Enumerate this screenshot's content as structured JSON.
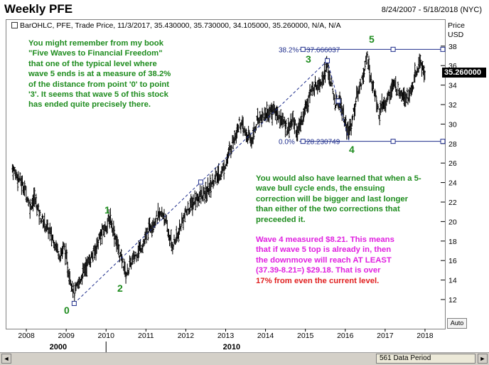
{
  "header": {
    "title": "Weekly PFE",
    "date_range": "8/24/2007 - 5/18/2018 (NYC)"
  },
  "info_line": "BarOHLC, PFE, Trade Price, 11/3/2017, 35.430000, 35.730000, 34.105000, 35.260000, N/A, N/A",
  "price_axis_header": {
    "line1": "Price",
    "line2": "USD"
  },
  "last_price": "35.260000",
  "auto_button": "Auto",
  "annotations": {
    "text1": [
      "You might remember from my book",
      "\"Five Waves to Financial Freedom\"",
      "that one of the typical level where",
      "wave 5 ends is at a measure of 38.2%",
      "of the distance from point '0' to point",
      "'3'. It seems that wave 5 of this stock",
      "has ended quite precisely there."
    ],
    "text2": [
      "You would also have learned that when a 5-",
      "wave bull cycle ends, the ensuing",
      "correction will be bigger and last longer",
      "than either of the two corrections that",
      "preceeded it."
    ],
    "text3": [
      "Wave 4 measured $8.21. This means",
      "that if wave 5 top is already in, then",
      "the downmove will reach AT LEAST",
      "(37.39-8.21=) $29.18. That is over"
    ],
    "text3_red": "17% from even the current level."
  },
  "wave_labels": [
    "0",
    "1",
    "2",
    "3",
    "4",
    "5"
  ],
  "fib_labels": {
    "pct_high": "38.2%",
    "val_high": "37.666037",
    "pct_low": "0.0%",
    "val_low": "28.230749"
  },
  "scrollbar": {
    "left": "◄",
    "right": "►",
    "thumb": "561 Data Period"
  },
  "colors": {
    "bars": "#000000",
    "annotation_green": "#1e8c1e",
    "annotation_magenta": "#e020e0",
    "annotation_red": "#e02020",
    "fib_lines": "#1f2e8c"
  },
  "chart_data": {
    "type": "bar",
    "subtype": "ohlc",
    "symbol": "PFE",
    "x_ticks": [
      "2008",
      "2009",
      "2010",
      "2011",
      "2012",
      "2013",
      "2014",
      "2015",
      "2016",
      "2017",
      "2018"
    ],
    "x_major_labels": [
      "2000",
      "2010"
    ],
    "y_ticks": [
      12,
      14,
      16,
      18,
      20,
      22,
      24,
      26,
      28,
      30,
      32,
      34,
      36,
      38
    ],
    "ylim": [
      10.7,
      39.5
    ],
    "grid": false,
    "fib_levels": [
      {
        "label": "38.2%",
        "value": 37.666037
      },
      {
        "label": "0.0%",
        "value": 28.230749
      }
    ],
    "waves": [
      {
        "label": "0",
        "year": 2009.2,
        "price": 11.6
      },
      {
        "label": "1",
        "year": 2010.1,
        "price": 20.4
      },
      {
        "label": "2",
        "year": 2010.5,
        "price": 14.0
      },
      {
        "label": "3",
        "year": 2015.55,
        "price": 36.5
      },
      {
        "label": "4",
        "year": 2016.1,
        "price": 28.23
      },
      {
        "label": "5",
        "year": 2016.55,
        "price": 37.39
      }
    ],
    "price_path": [
      [
        2007.65,
        25.5
      ],
      [
        2007.8,
        24.5
      ],
      [
        2007.95,
        23.5
      ],
      [
        2008.1,
        21.5
      ],
      [
        2008.2,
        22.5
      ],
      [
        2008.35,
        20.5
      ],
      [
        2008.5,
        19.5
      ],
      [
        2008.6,
        18.8
      ],
      [
        2008.75,
        17.5
      ],
      [
        2008.85,
        16.5
      ],
      [
        2008.95,
        17.5
      ],
      [
        2009.05,
        15.0
      ],
      [
        2009.15,
        13.5
      ],
      [
        2009.2,
        12.5
      ],
      [
        2009.3,
        13.5
      ],
      [
        2009.5,
        15.5
      ],
      [
        2009.7,
        16.8
      ],
      [
        2009.85,
        18.5
      ],
      [
        2010.0,
        19.5
      ],
      [
        2010.1,
        20.4
      ],
      [
        2010.25,
        18.2
      ],
      [
        2010.35,
        16.5
      ],
      [
        2010.45,
        15.5
      ],
      [
        2010.5,
        14.5
      ],
      [
        2010.6,
        15.5
      ],
      [
        2010.8,
        17.0
      ],
      [
        2010.95,
        17.8
      ],
      [
        2011.1,
        19.5
      ],
      [
        2011.3,
        20.5
      ],
      [
        2011.45,
        20.8
      ],
      [
        2011.55,
        19.0
      ],
      [
        2011.65,
        17.5
      ],
      [
        2011.8,
        18.5
      ],
      [
        2011.95,
        20.5
      ],
      [
        2012.1,
        21.5
      ],
      [
        2012.3,
        22.5
      ],
      [
        2012.5,
        22.8
      ],
      [
        2012.7,
        24.3
      ],
      [
        2012.9,
        25.0
      ],
      [
        2013.05,
        26.5
      ],
      [
        2013.2,
        28.5
      ],
      [
        2013.35,
        30.2
      ],
      [
        2013.5,
        29.0
      ],
      [
        2013.65,
        28.3
      ],
      [
        2013.8,
        30.5
      ],
      [
        2014.0,
        31.0
      ],
      [
        2014.2,
        31.5
      ],
      [
        2014.4,
        30.5
      ],
      [
        2014.55,
        29.5
      ],
      [
        2014.7,
        30.5
      ],
      [
        2014.8,
        29.0
      ],
      [
        2014.95,
        31.0
      ],
      [
        2015.1,
        33.0
      ],
      [
        2015.25,
        34.0
      ],
      [
        2015.4,
        34.5
      ],
      [
        2015.55,
        36.0
      ],
      [
        2015.65,
        34.0
      ],
      [
        2015.75,
        32.0
      ],
      [
        2015.85,
        32.5
      ],
      [
        2015.95,
        31.0
      ],
      [
        2016.05,
        29.0
      ],
      [
        2016.15,
        30.0
      ],
      [
        2016.3,
        33.0
      ],
      [
        2016.45,
        35.0
      ],
      [
        2016.55,
        37.0
      ],
      [
        2016.65,
        34.5
      ],
      [
        2016.75,
        33.0
      ],
      [
        2016.85,
        31.0
      ],
      [
        2016.95,
        32.0
      ],
      [
        2017.05,
        32.5
      ],
      [
        2017.2,
        34.0
      ],
      [
        2017.35,
        33.5
      ],
      [
        2017.5,
        33.0
      ],
      [
        2017.6,
        32.8
      ],
      [
        2017.7,
        34.0
      ],
      [
        2017.8,
        35.5
      ],
      [
        2017.9,
        36.5
      ],
      [
        2017.95,
        35.5
      ],
      [
        2018.0,
        35.3
      ]
    ]
  }
}
